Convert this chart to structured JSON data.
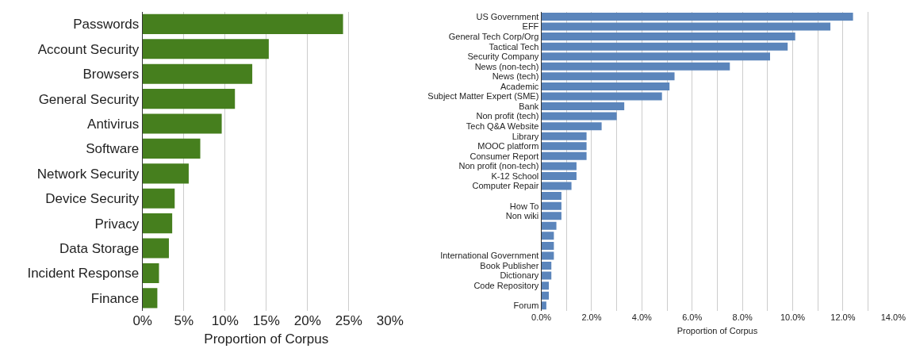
{
  "chart_data": [
    {
      "type": "bar",
      "orientation": "horizontal",
      "xlabel": "Proportion of Corpus",
      "categories": [
        "Passwords",
        "Account Security",
        "Browsers",
        "General Security",
        "Antivirus",
        "Software",
        "Network Security",
        "Device Security",
        "Privacy",
        "Data Storage",
        "Incident Response",
        "Finance"
      ],
      "series": [
        {
          "color": "#467f1e",
          "values": [
            24.3,
            15.3,
            13.3,
            11.2,
            9.6,
            7.0,
            5.6,
            3.9,
            3.6,
            3.2,
            2.0,
            1.8
          ]
        }
      ],
      "xlim": [
        0,
        30
      ],
      "xticks": [
        {
          "value": 0,
          "label": "0%"
        },
        {
          "value": 5,
          "label": "5%"
        },
        {
          "value": 10,
          "label": "10%"
        },
        {
          "value": 15,
          "label": "15%"
        },
        {
          "value": 20,
          "label": "20%"
        },
        {
          "value": 25,
          "label": "25%"
        },
        {
          "value": 30,
          "label": "30%"
        }
      ],
      "grid": "x"
    },
    {
      "type": "bar",
      "orientation": "horizontal",
      "xlabel": "Proportion of Corpus",
      "categories": [
        "US Government",
        "EFF",
        "General Tech Corp/Org",
        "Tactical Tech",
        "Security Company",
        "News (non-tech)",
        "News (tech)",
        "Academic",
        "Subject Matter Expert (SME)",
        "Bank",
        "Non profit (tech)",
        "Tech Q&A Website",
        "Library",
        "MOOC platform",
        "Consumer Report",
        "Non profit (non-tech)",
        "K-12 School",
        "Computer Repair",
        null,
        "How To",
        "Non wiki",
        null,
        null,
        null,
        "International Government",
        "Book Publisher",
        "Dictionary",
        "Code Repository",
        null,
        "Forum"
      ],
      "series": [
        {
          "color": "#5b85bb",
          "values": [
            12.4,
            11.5,
            10.1,
            9.8,
            9.1,
            7.5,
            5.3,
            5.1,
            4.8,
            3.3,
            3.0,
            2.4,
            1.8,
            1.8,
            1.8,
            1.4,
            1.4,
            1.2,
            0.8,
            0.8,
            0.8,
            0.6,
            0.5,
            0.5,
            0.5,
            0.4,
            0.4,
            0.3,
            0.3,
            0.2
          ]
        }
      ],
      "xlim": [
        0,
        14
      ],
      "xticks": [
        {
          "value": 0,
          "label": "0.0%"
        },
        {
          "value": 1,
          "label": null
        },
        {
          "value": 2,
          "label": "2.0%"
        },
        {
          "value": 3,
          "label": null
        },
        {
          "value": 4,
          "label": "4.0%"
        },
        {
          "value": 5,
          "label": null
        },
        {
          "value": 6,
          "label": "6.0%"
        },
        {
          "value": 7,
          "label": null
        },
        {
          "value": 8,
          "label": "8.0%"
        },
        {
          "value": 9,
          "label": null
        },
        {
          "value": 10,
          "label": "10.0%"
        },
        {
          "value": 11,
          "label": null
        },
        {
          "value": 12,
          "label": "12.0%"
        },
        {
          "value": 13,
          "label": null
        },
        {
          "value": 14,
          "label": "14.0%"
        }
      ],
      "grid": "x"
    }
  ]
}
